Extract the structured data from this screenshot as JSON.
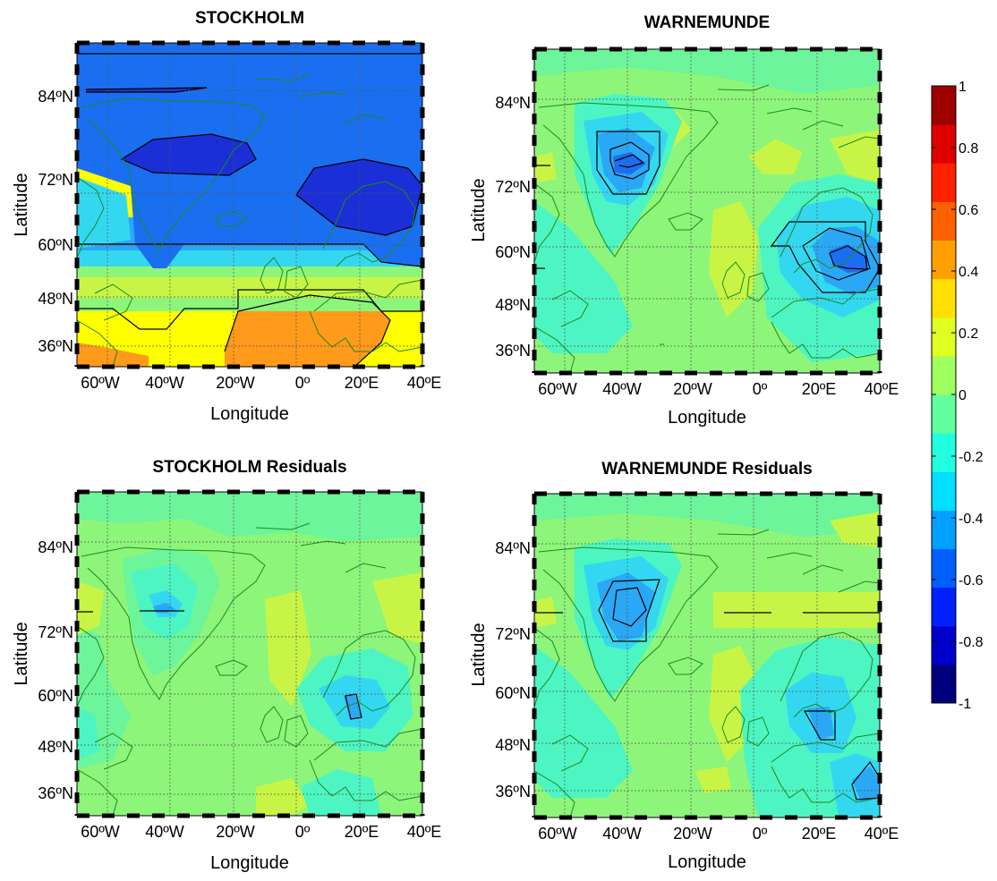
{
  "chart_data": [
    {
      "type": "heatmap",
      "title": "STOCKHOLM",
      "xlabel": "Longitude",
      "ylabel": "Latitude",
      "x_ticks": [
        "60ºW",
        "40ºW",
        "20ºW",
        "0º",
        "20ºE",
        "40ºE"
      ],
      "x_tick_values": [
        -60,
        -40,
        -20,
        0,
        20,
        40
      ],
      "y_ticks": [
        "36ºN",
        "48ºN",
        "60ºN",
        "72ºN",
        "84ºN"
      ],
      "y_tick_values": [
        36,
        48,
        60,
        72,
        84
      ],
      "xlim": [
        -70,
        40
      ],
      "ylim": [
        30,
        90
      ],
      "grid": true
    },
    {
      "type": "heatmap",
      "title": "WARNEMUNDE",
      "xlabel": "Longitude",
      "ylabel": "Latitude",
      "x_ticks": [
        "60ºW",
        "40ºW",
        "20ºW",
        "0º",
        "20ºE",
        "40ºE"
      ],
      "x_tick_values": [
        -60,
        -40,
        -20,
        0,
        20,
        40
      ],
      "y_ticks": [
        "36ºN",
        "48ºN",
        "60ºN",
        "72ºN",
        "84ºN"
      ],
      "y_tick_values": [
        36,
        48,
        60,
        72,
        84
      ],
      "xlim": [
        -70,
        40
      ],
      "ylim": [
        30,
        90
      ],
      "grid": true
    },
    {
      "type": "heatmap",
      "title": "STOCKHOLM Residuals",
      "xlabel": "Longitude",
      "ylabel": "Latitude",
      "x_ticks": [
        "60ºW",
        "40ºW",
        "20ºW",
        "0º",
        "20ºE",
        "40ºE"
      ],
      "x_tick_values": [
        -60,
        -40,
        -20,
        0,
        20,
        40
      ],
      "y_ticks": [
        "36ºN",
        "48ºN",
        "60ºN",
        "72ºN",
        "84ºN"
      ],
      "y_tick_values": [
        36,
        48,
        60,
        72,
        84
      ],
      "xlim": [
        -70,
        40
      ],
      "ylim": [
        30,
        90
      ],
      "grid": true
    },
    {
      "type": "heatmap",
      "title": "WARNEMUNDE Residuals",
      "xlabel": "Longitude",
      "ylabel": "Latitude",
      "x_ticks": [
        "60ºW",
        "40ºW",
        "20ºW",
        "0º",
        "20ºE",
        "40ºE"
      ],
      "x_tick_values": [
        -60,
        -40,
        -20,
        0,
        20,
        40
      ],
      "y_ticks": [
        "36ºN",
        "48ºN",
        "60ºN",
        "72ºN",
        "84ºN"
      ],
      "y_tick_values": [
        36,
        48,
        60,
        72,
        84
      ],
      "xlim": [
        -70,
        40
      ],
      "ylim": [
        30,
        90
      ],
      "grid": true
    }
  ],
  "colorbar": {
    "range": [
      -1,
      1
    ],
    "tick_labels": [
      "1",
      "0.8",
      "0.6",
      "0.4",
      "0.2",
      "0",
      "-0.2",
      "-0.4",
      "-0.6",
      "-0.8",
      "-1"
    ],
    "colors": [
      "#00007f",
      "#0000cd",
      "#0020ff",
      "#0060ff",
      "#00a0ff",
      "#00dfff",
      "#20ffdf",
      "#60ff9f",
      "#9fff60",
      "#dfff20",
      "#ffe000",
      "#ffa000",
      "#ff6000",
      "#ff2000",
      "#df0000",
      "#9f0000"
    ]
  },
  "palette": {
    "c_neg09": "#1a2fd6",
    "c_neg07": "#1a6ff0",
    "c_neg05": "#2aa8f5",
    "c_neg03": "#33d8f0",
    "c_neg01": "#4df5c2",
    "c_zero": "#6cf59a",
    "c_pos01": "#8df57a",
    "c_pos02": "#c8f545",
    "c_pos03": "#ffff00",
    "c_pos045": "#ff9a1a",
    "coast": "#1e8a1e",
    "grid": "#444444"
  }
}
